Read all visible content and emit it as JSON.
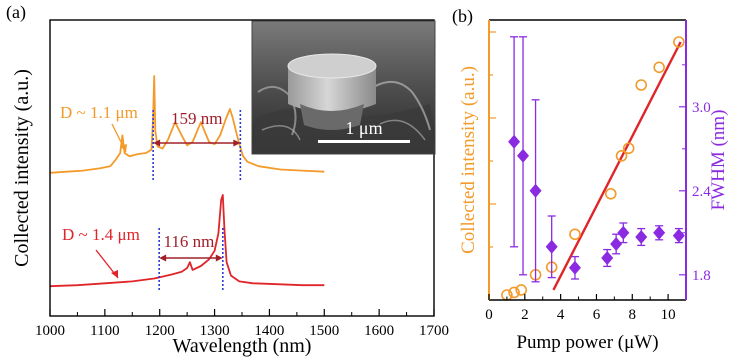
{
  "figure": {
    "panel_a_label": "(a)",
    "panel_b_label": "(b)",
    "inset_scale_text": "1 μm"
  },
  "colors": {
    "orange": "#f39a2b",
    "red": "#e0252a",
    "purple": "#8a2be2",
    "blue_dotted": "#2b3bd8",
    "axis": "#000000"
  },
  "chart_data": [
    {
      "type": "line",
      "title": "",
      "xlabel": "Wavelength (nm)",
      "ylabel": "Collected intensity (a.u.)",
      "xlim": [
        1000,
        1700
      ],
      "x_ticks": [
        1000,
        1100,
        1200,
        1300,
        1400,
        1500,
        1600,
        1700
      ],
      "series": [
        {
          "name": "D ~ 1.1 μm",
          "color": "#f39a2b",
          "x": [
            1000,
            1030,
            1060,
            1090,
            1110,
            1120,
            1128,
            1132,
            1136,
            1145,
            1160,
            1175,
            1185,
            1188,
            1190,
            1192,
            1196,
            1205,
            1215,
            1228,
            1240,
            1250,
            1260,
            1270,
            1275,
            1280,
            1290,
            1300,
            1310,
            1320,
            1328,
            1333,
            1338,
            1345,
            1352,
            1360,
            1380,
            1420,
            1460,
            1500
          ],
          "y": [
            0.12,
            0.13,
            0.14,
            0.16,
            0.18,
            0.24,
            0.3,
            0.46,
            0.3,
            0.27,
            0.29,
            0.3,
            0.33,
            0.62,
            1.0,
            0.5,
            0.36,
            0.34,
            0.42,
            0.58,
            0.46,
            0.37,
            0.4,
            0.52,
            0.58,
            0.52,
            0.4,
            0.38,
            0.46,
            0.6,
            0.7,
            0.62,
            0.52,
            0.38,
            0.27,
            0.22,
            0.18,
            0.15,
            0.14,
            0.13
          ]
        },
        {
          "name": "D ~ 1.4 μm",
          "color": "#e0252a",
          "x": [
            1000,
            1050,
            1100,
            1150,
            1190,
            1220,
            1240,
            1250,
            1255,
            1260,
            1275,
            1290,
            1300,
            1307,
            1312,
            1315,
            1318,
            1322,
            1330,
            1345,
            1370,
            1420,
            1460,
            1500
          ],
          "y": [
            0.05,
            0.06,
            0.08,
            0.1,
            0.13,
            0.17,
            0.2,
            0.24,
            0.3,
            0.22,
            0.26,
            0.33,
            0.42,
            0.6,
            0.95,
            1.0,
            0.65,
            0.3,
            0.16,
            0.1,
            0.08,
            0.07,
            0.06,
            0.06
          ]
        }
      ],
      "annotations": [
        {
          "text": "D ~ 1.1 μm",
          "color": "#f39a2b"
        },
        {
          "text": "159 nm",
          "color": "#a0202a",
          "from_nm": 1188,
          "to_nm": 1347
        },
        {
          "text": "D ~ 1.4 μm",
          "color": "#e0252a"
        },
        {
          "text": "116 nm",
          "color": "#a0202a",
          "from_nm": 1199,
          "to_nm": 1315
        }
      ]
    },
    {
      "type": "scatter",
      "title": "",
      "xlabel": "Pump power (μW)",
      "ylabel_left": "Collected intensity (a.u.)",
      "ylabel_right": "FWHM (nm)",
      "xlim": [
        0,
        11
      ],
      "x_ticks": [
        0,
        2,
        4,
        6,
        8,
        10
      ],
      "y_right_ticks": [
        1.8,
        2.4,
        3.0
      ],
      "y_right_lim": [
        1.62,
        3.62
      ],
      "series": [
        {
          "name": "Collected intensity",
          "axis": "left",
          "color": "#f39a2b",
          "marker": "open-circle",
          "x": [
            1.0,
            1.4,
            1.8,
            2.6,
            3.5,
            4.8,
            6.8,
            7.4,
            7.8,
            8.5,
            9.5,
            10.6
          ],
          "y": [
            0.0,
            0.01,
            0.02,
            0.08,
            0.11,
            0.24,
            0.4,
            0.55,
            0.58,
            0.83,
            0.9,
            1.0
          ]
        },
        {
          "name": "Linear fit",
          "axis": "left",
          "color": "#e0252a",
          "marker": "line",
          "x": [
            3.6,
            10.7
          ],
          "y": [
            0.02,
            1.0
          ]
        },
        {
          "name": "FWHM",
          "axis": "right",
          "color": "#8a2be2",
          "marker": "filled-diamond",
          "x": [
            1.4,
            1.9,
            2.6,
            3.5,
            4.8,
            6.6,
            7.1,
            7.5,
            8.5,
            9.5,
            10.6
          ],
          "y": [
            2.75,
            2.65,
            2.4,
            2.0,
            1.85,
            1.92,
            2.02,
            2.1,
            2.07,
            2.1,
            2.08
          ],
          "err": [
            0.75,
            0.85,
            0.65,
            0.22,
            0.08,
            0.06,
            0.07,
            0.07,
            0.06,
            0.05,
            0.05
          ]
        }
      ]
    }
  ]
}
